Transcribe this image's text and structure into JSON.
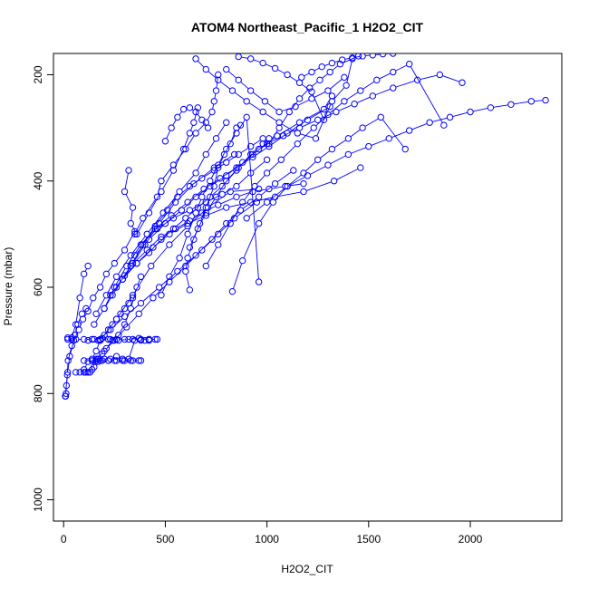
{
  "chart_data": {
    "type": "scatter",
    "title": "ATOM4 Northeast_Pacific_1 H2O2_CIT",
    "xlabel": "H2O2_CIT",
    "ylabel": "Pressure (mbar)",
    "xlim": [
      -50,
      2450
    ],
    "ylim": [
      1040,
      160
    ],
    "y_reversed": true,
    "x_ticks": [
      0,
      500,
      1000,
      1500,
      2000
    ],
    "y_ticks": [
      200,
      400,
      600,
      800,
      1000
    ],
    "grid": false,
    "legend": "none",
    "colors": {
      "series": "#0000ff",
      "axes": "#000000",
      "background": "#ffffff"
    },
    "marker": "open-circle",
    "series": [
      {
        "x": [
          10,
          12,
          14,
          18,
          22,
          40,
          55,
          70,
          90,
          110
        ],
        "y": [
          805,
          800,
          785,
          765,
          738,
          710,
          690,
          670,
          650,
          640
        ]
      },
      {
        "x": [
          8,
          20,
          30,
          50,
          75,
          95,
          120,
          145,
          180,
          210,
          250,
          300,
          350
        ],
        "y": [
          805,
          760,
          730,
          700,
          680,
          660,
          645,
          620,
          600,
          575,
          555,
          530,
          495
        ]
      },
      {
        "x": [
          100,
          120,
          140,
          155,
          170,
          190,
          210,
          240,
          270,
          300,
          330,
          360,
          380
        ],
        "y": [
          760,
          760,
          755,
          740,
          735,
          725,
          715,
          700,
          690,
          670,
          640,
          600,
          580
        ]
      },
      {
        "x": [
          110,
          130,
          150,
          170,
          200,
          230,
          260,
          290,
          320,
          350,
          380,
          400,
          420,
          450
        ],
        "y": [
          760,
          760,
          750,
          740,
          735,
          735,
          730,
          735,
          735,
          700,
          700,
          700,
          700,
          698
        ]
      },
      {
        "x": [
          20,
          40,
          60,
          100,
          140,
          180,
          220,
          260,
          300,
          340,
          380,
          420,
          460
        ],
        "y": [
          698,
          698,
          698,
          698,
          698,
          698,
          698,
          698,
          698,
          698,
          698,
          698,
          698
        ]
      },
      {
        "x": [
          140,
          160,
          190,
          220,
          250,
          290,
          330,
          370
        ],
        "y": [
          738,
          738,
          738,
          738,
          738,
          738,
          738,
          738
        ]
      },
      {
        "x": [
          160,
          200,
          250,
          310,
          370,
          440,
          520,
          600,
          680,
          760,
          840,
          950
        ],
        "y": [
          735,
          720,
          700,
          675,
          650,
          620,
          590,
          560,
          530,
          500,
          470,
          440
        ]
      },
      {
        "x": [
          170,
          230,
          300,
          380,
          470,
          560,
          650,
          730,
          800,
          870,
          960,
          1040,
          1130
        ],
        "y": [
          700,
          680,
          655,
          630,
          600,
          570,
          540,
          510,
          480,
          455,
          430,
          405,
          380
        ]
      },
      {
        "x": [
          180,
          260,
          340,
          430,
          520,
          610,
          710,
          820,
          960
        ],
        "y": [
          700,
          660,
          615,
          560,
          520,
          485,
          450,
          420,
          415
        ]
      },
      {
        "x": [
          150,
          200,
          240,
          290,
          340,
          400,
          470,
          550,
          640,
          740,
          840
        ],
        "y": [
          670,
          640,
          615,
          585,
          555,
          520,
          480,
          440,
          405,
          375,
          350
        ]
      },
      {
        "x": [
          160,
          210,
          260,
          330,
          410,
          490,
          570,
          650,
          700,
          750,
          800
        ],
        "y": [
          650,
          615,
          580,
          540,
          500,
          460,
          420,
          385,
          350,
          320,
          290
        ]
      },
      {
        "x": [
          200,
          250,
          310,
          380,
          460,
          540,
          620,
          700,
          780,
          850,
          920,
          1000
        ],
        "y": [
          640,
          600,
          560,
          520,
          490,
          470,
          455,
          440,
          425,
          410,
          385,
          360
        ]
      },
      {
        "x": [
          230,
          290,
          360,
          440,
          520,
          610,
          700,
          800,
          920,
          1040,
          1180,
          1330,
          1460
        ],
        "y": [
          615,
          585,
          555,
          525,
          500,
          480,
          465,
          450,
          440,
          430,
          420,
          400,
          375
        ]
      },
      {
        "x": [
          260,
          330,
          410,
          480,
          550,
          620,
          680,
          760,
          850,
          930,
          1010,
          1090,
          1180
        ],
        "y": [
          600,
          560,
          530,
          505,
          490,
          475,
          460,
          445,
          430,
          420,
          415,
          410,
          405
        ]
      },
      {
        "x": [
          300,
          360,
          420,
          480,
          540,
          600,
          660,
          720,
          780,
          850,
          920,
          980,
          1010
        ],
        "y": [
          578,
          555,
          535,
          510,
          490,
          470,
          450,
          430,
          410,
          380,
          350,
          330,
          320
        ]
      },
      {
        "x": [
          330,
          390,
          450,
          510,
          560,
          620,
          680,
          740,
          800,
          860,
          920,
          980
        ],
        "y": [
          560,
          520,
          485,
          455,
          430,
          410,
          395,
          380,
          365,
          350,
          335,
          320
        ]
      },
      {
        "x": [
          350,
          420,
          500,
          580,
          650,
          720,
          800,
          880,
          960,
          1050,
          1160,
          1280,
          1320
        ],
        "y": [
          540,
          510,
          480,
          455,
          430,
          410,
          390,
          365,
          340,
          315,
          290,
          265,
          240
        ]
      },
      {
        "x": [
          380,
          450,
          530,
          610,
          690,
          770,
          850,
          930,
          1010,
          1100,
          1200,
          1310
        ],
        "y": [
          520,
          490,
          465,
          440,
          415,
          395,
          375,
          355,
          335,
          310,
          285,
          260
        ]
      },
      {
        "x": [
          320,
          300,
          340,
          330,
          360,
          420,
          480,
          540,
          590,
          620,
          640,
          660
        ],
        "y": [
          380,
          420,
          450,
          480,
          500,
          460,
          420,
          380,
          340,
          310,
          290,
          262
        ]
      },
      {
        "x": [
          350,
          390,
          460,
          480,
          540,
          600,
          650,
          700,
          730,
          740,
          750,
          760
        ],
        "y": [
          500,
          470,
          430,
          400,
          370,
          340,
          310,
          290,
          270,
          250,
          230,
          200
        ]
      },
      {
        "x": [
          480,
          520,
          570,
          610,
          650,
          680,
          720,
          760,
          800,
          850,
          900,
          960
        ],
        "y": [
          615,
          580,
          545,
          500,
          460,
          430,
          400,
          370,
          340,
          310,
          280,
          590
        ]
      },
      {
        "x": [
          620,
          600,
          610,
          640,
          670,
          700,
          740,
          760,
          790,
          820,
          850,
          870
        ],
        "y": [
          605,
          570,
          545,
          510,
          480,
          450,
          410,
          375,
          350,
          330,
          300,
          295
        ]
      },
      {
        "x": [
          830,
          880,
          960,
          1030,
          1100,
          1180,
          1250,
          1320,
          1400,
          1470,
          1560,
          1680
        ],
        "y": [
          608,
          550,
          480,
          440,
          410,
          385,
          360,
          340,
          320,
          300,
          280,
          340
        ]
      },
      {
        "x": [
          700,
          760,
          820,
          880,
          940,
          1000,
          1070,
          1150,
          1230,
          1300,
          1380,
          1460,
          1540,
          1620,
          1700,
          1870
        ],
        "y": [
          560,
          520,
          480,
          440,
          410,
          385,
          360,
          330,
          300,
          275,
          250,
          230,
          210,
          195,
          180,
          295
        ]
      },
      {
        "x": [
          620,
          660,
          700,
          750,
          800,
          860,
          930,
          1000,
          1080,
          1160,
          1250,
          1340,
          1430,
          1520,
          1620,
          1740,
          1850,
          1960
        ],
        "y": [
          525,
          490,
          460,
          430,
          400,
          375,
          350,
          330,
          315,
          300,
          285,
          270,
          255,
          240,
          225,
          210,
          200,
          215
        ]
      },
      {
        "x": [
          900,
          1000,
          1100,
          1200,
          1300,
          1400,
          1500,
          1600,
          1700,
          1800,
          1900,
          2000,
          2100,
          2200,
          2300,
          2370
        ],
        "y": [
          470,
          440,
          410,
          390,
          370,
          350,
          335,
          320,
          305,
          290,
          280,
          270,
          262,
          256,
          250,
          248
        ]
      },
      {
        "x": [
          650,
          700,
          760,
          830,
          900,
          980,
          1060,
          1150,
          1240,
          1320,
          1390,
          1420
        ],
        "y": [
          170,
          190,
          210,
          230,
          250,
          270,
          290,
          310,
          320,
          250,
          220,
          170
        ]
      },
      {
        "x": [
          800,
          860,
          920,
          990,
          1060,
          1140,
          1220,
          1300,
          1380
        ],
        "y": [
          190,
          210,
          230,
          250,
          270,
          260,
          245,
          230,
          205
        ]
      },
      {
        "x": [
          1010,
          1060,
          1110,
          1160,
          1210,
          1260,
          1310,
          1360,
          1450
        ],
        "y": [
          330,
          300,
          270,
          245,
          225,
          210,
          195,
          180,
          165
        ]
      },
      {
        "x": [
          1170,
          1220,
          1270,
          1320,
          1370,
          1420,
          1470,
          1520,
          1570,
          1620
        ],
        "y": [
          205,
          195,
          185,
          178,
          172,
          168,
          165,
          163,
          161,
          160
        ]
      },
      {
        "x": [
          860,
          920,
          980,
          1040,
          1100,
          1160,
          1220,
          1280
        ],
        "y": [
          166,
          170,
          178,
          188,
          200,
          215,
          232,
          285
        ]
      },
      {
        "x": [
          500,
          530,
          560,
          590,
          620,
          650,
          680,
          710
        ],
        "y": [
          325,
          300,
          280,
          265,
          262,
          270,
          285,
          300
        ]
      },
      {
        "x": [
          20,
          40,
          60,
          80,
          100,
          120
        ],
        "y": [
          695,
          695,
          670,
          620,
          575,
          560
        ]
      },
      {
        "x": [
          60,
          80,
          100,
          120,
          140,
          160,
          180,
          200,
          220,
          240,
          260,
          280,
          300,
          320,
          340
        ],
        "y": [
          760,
          760,
          755,
          740,
          735,
          720,
          700,
          690,
          680,
          670,
          660,
          650,
          640,
          630,
          620
        ]
      },
      {
        "x": [
          100,
          140,
          180,
          220,
          260,
          300,
          340,
          380
        ],
        "y": [
          738,
          738,
          738,
          738,
          738,
          738,
          738,
          738
        ]
      },
      {
        "x": [
          120,
          150,
          190,
          230,
          270,
          320,
          370,
          420
        ],
        "y": [
          700,
          698,
          696,
          698,
          700,
          698,
          696,
          698
        ]
      }
    ]
  }
}
